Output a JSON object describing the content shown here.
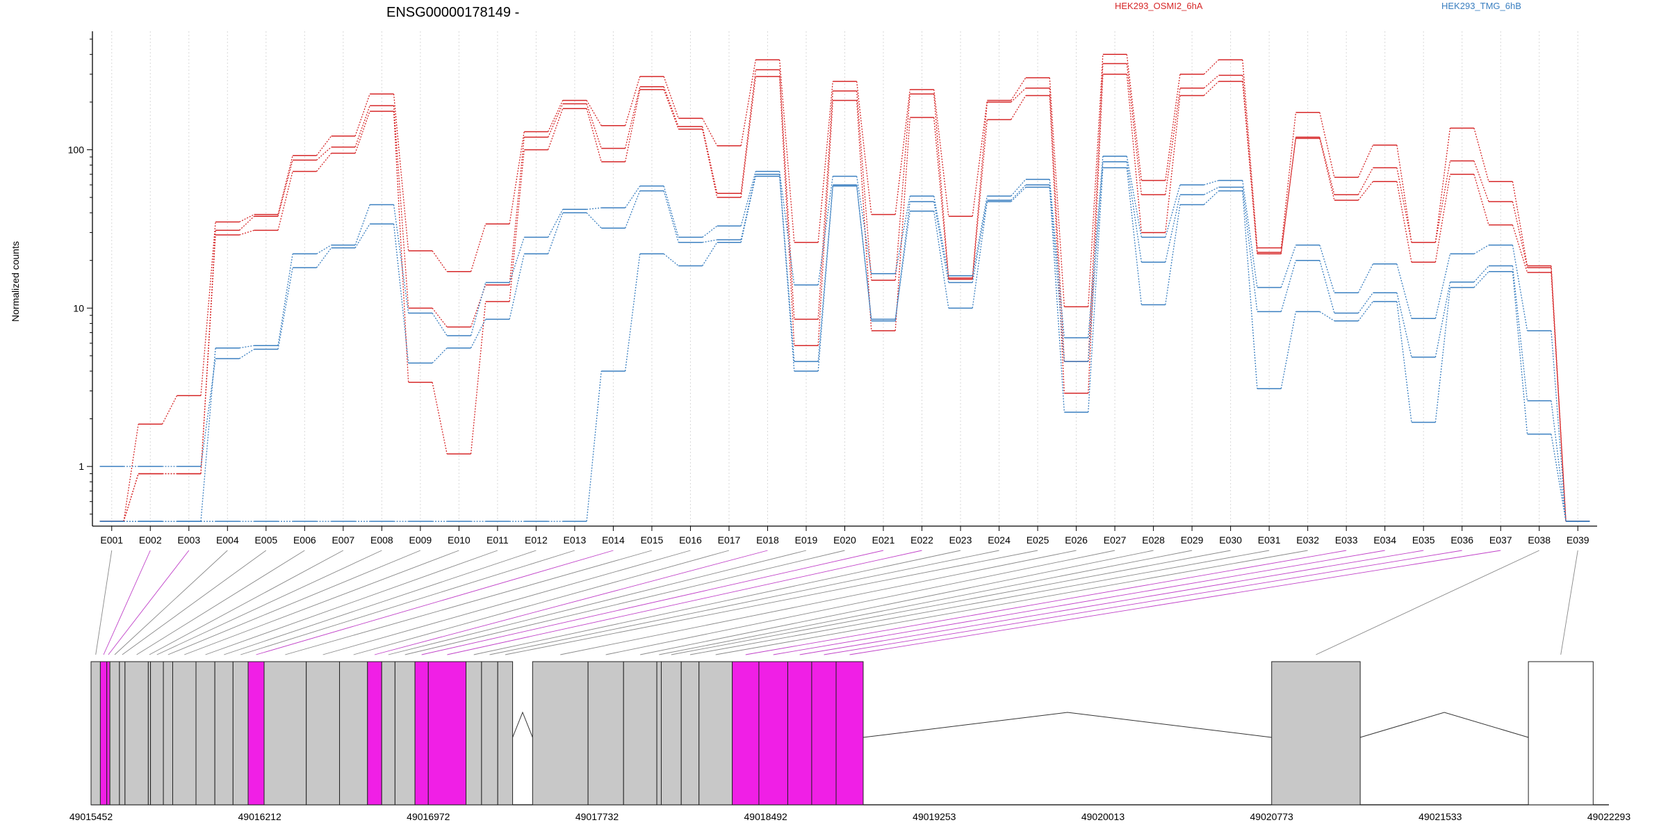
{
  "chart_data": {
    "type": "line",
    "title": "ENSG00000178149 -",
    "xlabel": "",
    "ylabel": "Normalized counts",
    "yscale": "log",
    "ylim": [
      0.42,
      560
    ],
    "yticks": [
      1,
      10,
      100
    ],
    "ytick_labels": [
      "1",
      "10",
      "100"
    ],
    "grid": "vertical dotted lines at each exon bin",
    "legend_position": "top",
    "categories": [
      "E001",
      "E002",
      "E003",
      "E004",
      "E005",
      "E006",
      "E007",
      "E008",
      "E009",
      "E010",
      "E011",
      "E012",
      "E013",
      "E014",
      "E015",
      "E016",
      "E017",
      "E018",
      "E019",
      "E020",
      "E021",
      "E022",
      "E023",
      "E024",
      "E025",
      "E026",
      "E027",
      "E028",
      "E029",
      "E030",
      "E031",
      "E032",
      "E033",
      "E034",
      "E035",
      "E036",
      "E037",
      "E038",
      "E039"
    ],
    "groups": [
      {
        "name": "HEK293_OSMI2_6hA",
        "color": "#d62728"
      },
      {
        "name": "HEK293_TMG_6hB",
        "color": "#3a7fc0"
      }
    ],
    "series": [
      {
        "group": 0,
        "values": [
          0.45,
          1.85,
          2.8,
          35,
          39,
          92,
          122,
          225,
          23,
          17,
          34,
          130,
          205,
          142,
          290,
          158,
          106,
          370,
          26,
          270,
          39,
          240,
          38,
          205,
          285,
          10.2,
          400,
          64,
          300,
          370,
          24,
          172,
          67,
          107,
          26,
          137,
          63,
          18.5,
          0.45
        ]
      },
      {
        "group": 0,
        "values": [
          0.45,
          0.9,
          0.9,
          31,
          38,
          86,
          104,
          190,
          10,
          7.6,
          14,
          120,
          195,
          102,
          250,
          140,
          53,
          320,
          8.5,
          235,
          15,
          225,
          15.5,
          200,
          245,
          4.6,
          350,
          52,
          245,
          295,
          22,
          120,
          52,
          77,
          26,
          85,
          47,
          18,
          0.45
        ]
      },
      {
        "group": 0,
        "values": [
          0.45,
          0.9,
          0.9,
          29,
          31,
          73,
          95,
          175,
          3.4,
          1.2,
          11,
          100,
          182,
          84,
          240,
          135,
          50,
          290,
          5.8,
          205,
          7.2,
          160,
          15.2,
          155,
          220,
          2.9,
          300,
          30,
          220,
          270,
          22.5,
          118,
          48,
          63,
          19.5,
          70,
          33.5,
          16.8,
          0.45
        ]
      },
      {
        "group": 1,
        "values": [
          0.45,
          0.45,
          0.45,
          0.45,
          0.45,
          0.45,
          0.45,
          0.45,
          0.45,
          0.45,
          0.45,
          0.45,
          0.45,
          4,
          22,
          18.5,
          26,
          68,
          4,
          59,
          8.5,
          41,
          10,
          47,
          58,
          2.2,
          77,
          10.5,
          45,
          55,
          3.1,
          9.5,
          8.3,
          11,
          1.9,
          13.5,
          17,
          1.6,
          0.45
        ]
      },
      {
        "group": 1,
        "values": [
          1,
          1,
          1,
          4.8,
          5.5,
          18,
          24,
          34,
          4.5,
          5.6,
          8.5,
          22,
          40,
          32,
          55,
          26,
          27,
          70,
          4.6,
          60,
          8.3,
          47,
          14.5,
          48,
          60,
          4.6,
          84,
          19.5,
          52,
          58,
          9.5,
          20,
          9.3,
          12.5,
          4.9,
          14.6,
          18.5,
          2.6,
          0.45
        ]
      },
      {
        "group": 1,
        "values": [
          0.45,
          0.45,
          0.45,
          5.6,
          5.8,
          22,
          25,
          45,
          9.3,
          6.7,
          14.5,
          28,
          42,
          43,
          59,
          28,
          33,
          73,
          14,
          68,
          16.5,
          51,
          16,
          51,
          65,
          6.5,
          91,
          28,
          60,
          64,
          13.5,
          25,
          12.5,
          19,
          8.6,
          22,
          25,
          7.2,
          0.45
        ]
      }
    ],
    "gene_model": {
      "coordinate_ticks": [
        "49015452",
        "49016212",
        "49016972",
        "49017732",
        "49018492",
        "49019253",
        "49020013",
        "49020773",
        "49021533",
        "49022293"
      ],
      "coord_range": [
        49015452,
        49022293
      ],
      "highlight_color": "#f01fe6",
      "exon_color": "#c8c8c8",
      "exons": [
        {
          "id": "E001",
          "start": 49015452,
          "end": 49015494,
          "hl": false
        },
        {
          "id": "E002",
          "start": 49015494,
          "end": 49015523,
          "hl": true
        },
        {
          "id": "E003",
          "start": 49015523,
          "end": 49015537,
          "hl": true
        },
        {
          "id": "E004",
          "start": 49015537,
          "end": 49015580,
          "hl": false
        },
        {
          "id": "E005",
          "start": 49015580,
          "end": 49015605,
          "hl": false
        },
        {
          "id": "E006",
          "start": 49015605,
          "end": 49015710,
          "hl": false
        },
        {
          "id": "E007",
          "start": 49015710,
          "end": 49015720,
          "hl": false
        },
        {
          "id": "E008",
          "start": 49015720,
          "end": 49015778,
          "hl": false
        },
        {
          "id": "E009",
          "start": 49015778,
          "end": 49015820,
          "hl": false
        },
        {
          "id": "E010",
          "start": 49015820,
          "end": 49015925,
          "hl": false
        },
        {
          "id": "E011",
          "start": 49015925,
          "end": 49016010,
          "hl": false
        },
        {
          "id": "E012",
          "start": 49016010,
          "end": 49016092,
          "hl": false
        },
        {
          "id": "E013",
          "start": 49016092,
          "end": 49016160,
          "hl": false
        },
        {
          "id": "E014",
          "start": 49016160,
          "end": 49016232,
          "hl": true
        },
        {
          "id": "E015",
          "start": 49016232,
          "end": 49016422,
          "hl": false
        },
        {
          "id": "E016",
          "start": 49016422,
          "end": 49016572,
          "hl": false
        },
        {
          "id": "E017",
          "start": 49016572,
          "end": 49016698,
          "hl": false
        },
        {
          "id": "E018",
          "start": 49016698,
          "end": 49016762,
          "hl": true
        },
        {
          "id": "E019",
          "start": 49016762,
          "end": 49016822,
          "hl": false
        },
        {
          "id": "E020",
          "start": 49016822,
          "end": 49016912,
          "hl": false
        },
        {
          "id": "E021",
          "start": 49016912,
          "end": 49016972,
          "hl": true
        },
        {
          "id": "E022",
          "start": 49016972,
          "end": 49017142,
          "hl": true
        },
        {
          "id": "E023",
          "start": 49017142,
          "end": 49017212,
          "hl": false
        },
        {
          "id": "E024",
          "start": 49017212,
          "end": 49017285,
          "hl": false
        },
        {
          "id": "E025",
          "start": 49017285,
          "end": 49017352,
          "hl": false
        },
        {
          "id": "E026",
          "start": 49017442,
          "end": 49017692,
          "hl": false
        },
        {
          "id": "E027",
          "start": 49017692,
          "end": 49017852,
          "hl": false
        },
        {
          "id": "E028",
          "start": 49017852,
          "end": 49018002,
          "hl": false
        },
        {
          "id": "E029",
          "start": 49018002,
          "end": 49018022,
          "hl": false
        },
        {
          "id": "E030",
          "start": 49018022,
          "end": 49018112,
          "hl": false
        },
        {
          "id": "E031",
          "start": 49018112,
          "end": 49018192,
          "hl": false
        },
        {
          "id": "E032",
          "start": 49018192,
          "end": 49018342,
          "hl": false
        },
        {
          "id": "E033",
          "start": 49018342,
          "end": 49018462,
          "hl": true
        },
        {
          "id": "E034",
          "start": 49018462,
          "end": 49018592,
          "hl": true
        },
        {
          "id": "E035",
          "start": 49018592,
          "end": 49018700,
          "hl": true
        },
        {
          "id": "E036",
          "start": 49018700,
          "end": 49018810,
          "hl": true
        },
        {
          "id": "E037",
          "start": 49018810,
          "end": 49018932,
          "hl": true
        },
        {
          "id": "E038",
          "start": 49020773,
          "end": 49021172,
          "hl": false
        },
        {
          "id": "E039",
          "start": 49021930,
          "end": 49022222,
          "hl": false
        }
      ],
      "introns": [
        {
          "start": 49017352,
          "end": 49017442
        },
        {
          "start": 49018932,
          "end": 49020773
        },
        {
          "start": 49021172,
          "end": 49021930
        }
      ]
    }
  }
}
